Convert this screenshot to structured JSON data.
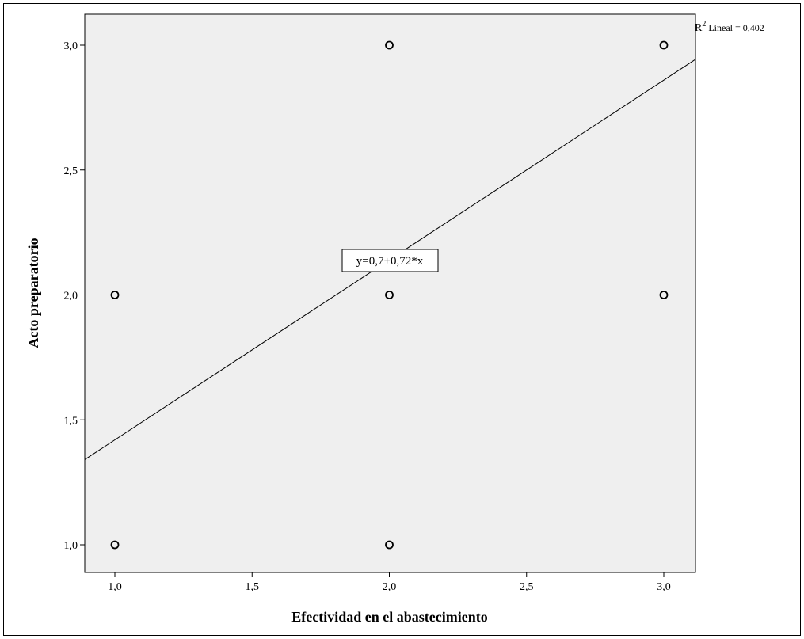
{
  "chart_data": {
    "type": "scatter",
    "xlabel": "Efectividad en el abastecimiento",
    "ylabel": "Acto preparatorio",
    "x_ticks": [
      "1,0",
      "1,5",
      "2,0",
      "2,5",
      "3,0"
    ],
    "y_ticks": [
      "1,0",
      "1,5",
      "2,0",
      "2,5",
      "3,0"
    ],
    "xlim": [
      0.9,
      3.1
    ],
    "ylim": [
      0.94,
      3.16
    ],
    "grid": false,
    "points": [
      {
        "x": 1,
        "y": 1
      },
      {
        "x": 1,
        "y": 2
      },
      {
        "x": 2,
        "y": 1
      },
      {
        "x": 2,
        "y": 2
      },
      {
        "x": 2,
        "y": 3
      },
      {
        "x": 3,
        "y": 2
      },
      {
        "x": 3,
        "y": 3
      }
    ],
    "fit_line": {
      "intercept": 0.7,
      "slope": 0.72
    },
    "equation_label": "y=0,7+0,72*x",
    "r2_label_prefix": "R",
    "r2_label_sup": "2",
    "r2_label_suffix": " Lineal = 0,402",
    "colors": {
      "plot_background": "#efefef",
      "marker": "#000000",
      "line": "#000000"
    }
  }
}
